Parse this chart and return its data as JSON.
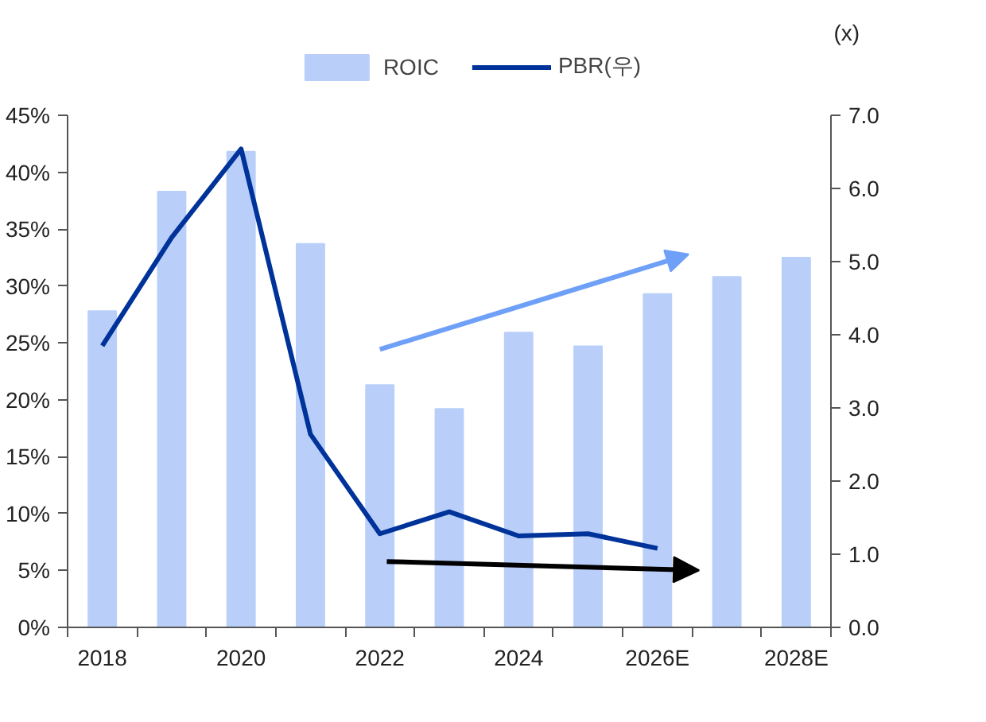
{
  "chart_data": {
    "type": "bar",
    "y2label": "(x)",
    "categories": [
      "2018",
      null,
      "2020",
      null,
      "2022",
      null,
      "2024",
      null,
      "2026E",
      null,
      "2028E"
    ],
    "series": [
      {
        "name": "ROIC",
        "color": "#b9cffa",
        "values": [
          27.8,
          38.3,
          41.8,
          33.7,
          21.3,
          19.2,
          25.9,
          24.7,
          29.3,
          30.8,
          32.5
        ]
      },
      {
        "name": "PBR(우)",
        "type": "line",
        "axis": "y2",
        "color": "#00339a",
        "values": [
          3.85,
          5.33,
          6.54,
          2.64,
          1.28,
          1.58,
          1.25,
          1.28,
          1.08,
          null,
          null
        ]
      }
    ],
    "ylim": [
      0,
      45
    ],
    "yticks": [
      {
        "value": 0,
        "label": "0%"
      },
      {
        "value": 5,
        "label": "5%"
      },
      {
        "value": 10,
        "label": "10%"
      },
      {
        "value": 15,
        "label": "15%"
      },
      {
        "value": 20,
        "label": "20%"
      },
      {
        "value": 25,
        "label": "25%"
      },
      {
        "value": 30,
        "label": "30%"
      },
      {
        "value": 35,
        "label": "35%"
      },
      {
        "value": 40,
        "label": "40%"
      },
      {
        "value": 45,
        "label": "45%"
      }
    ],
    "y2lim": [
      0,
      7
    ],
    "y2ticks": [
      {
        "value": 0,
        "label": "0.0"
      },
      {
        "value": 1,
        "label": "1.0"
      },
      {
        "value": 2,
        "label": "2.0"
      },
      {
        "value": 3,
        "label": "3.0"
      },
      {
        "value": 4,
        "label": "4.0"
      },
      {
        "value": 5,
        "label": "5.0"
      },
      {
        "value": 6,
        "label": "6.0"
      },
      {
        "value": 7,
        "label": "7.0"
      }
    ],
    "grid": false,
    "legend": "top",
    "line_style": "solid",
    "marker": "none"
  }
}
